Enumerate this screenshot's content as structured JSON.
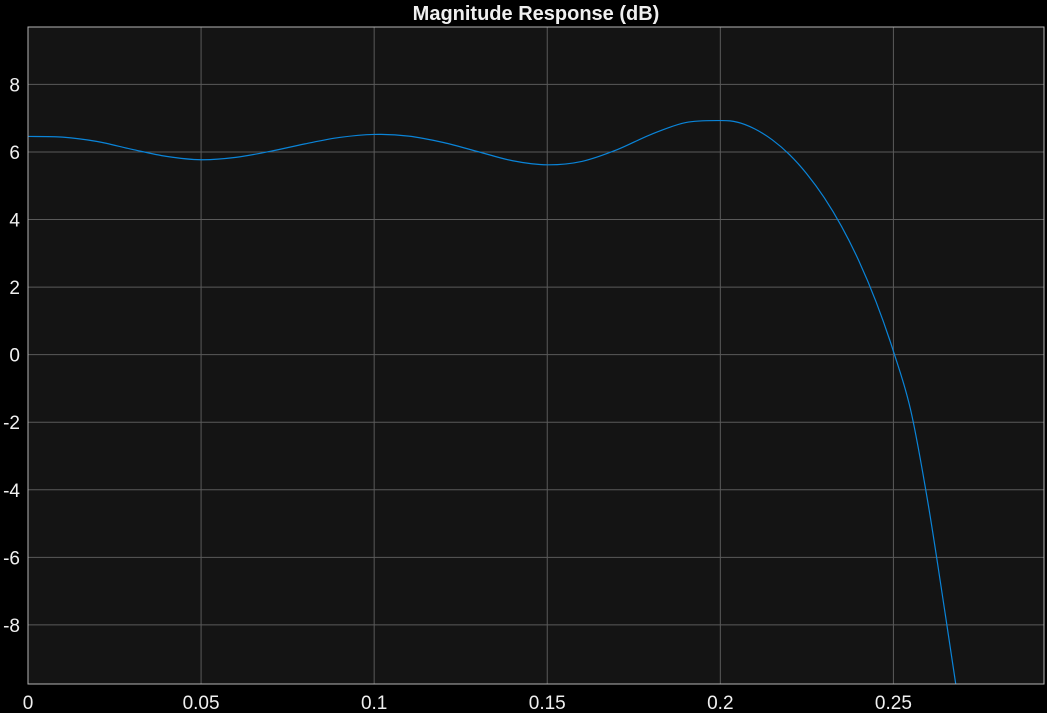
{
  "chart_data": {
    "type": "line",
    "title": "Magnitude Response (dB)",
    "xlabel": "",
    "ylabel": "",
    "xlim": [
      0,
      0.2935
    ],
    "ylim": [
      -9.75,
      9.7
    ],
    "x_ticks": [
      0,
      0.05,
      0.1,
      0.15,
      0.2,
      0.25
    ],
    "x_tick_labels": [
      "0",
      "0.05",
      "0.1",
      "0.15",
      "0.2",
      "0.25"
    ],
    "y_ticks": [
      8,
      6,
      4,
      2,
      0,
      -2,
      -4,
      -6,
      -8
    ],
    "y_tick_labels": [
      "8",
      "6",
      "4",
      "2",
      "0",
      "-2",
      "-4",
      "-6",
      "-8"
    ],
    "grid": true,
    "colors": {
      "figure_background": "#000000",
      "axes_background": "#141414",
      "grid": "#5a5a5a",
      "axes_border": "#b4b4b4",
      "line": "#0a84d8",
      "text": "#f0f0f0"
    },
    "series": [
      {
        "points": [
          [
            0.0,
            6.46
          ],
          [
            0.01,
            6.44
          ],
          [
            0.02,
            6.31
          ],
          [
            0.03,
            6.08
          ],
          [
            0.04,
            5.87
          ],
          [
            0.05,
            5.77
          ],
          [
            0.06,
            5.84
          ],
          [
            0.07,
            6.02
          ],
          [
            0.08,
            6.24
          ],
          [
            0.09,
            6.43
          ],
          [
            0.1,
            6.52
          ],
          [
            0.11,
            6.47
          ],
          [
            0.12,
            6.28
          ],
          [
            0.13,
            6.01
          ],
          [
            0.14,
            5.74
          ],
          [
            0.15,
            5.62
          ],
          [
            0.16,
            5.72
          ],
          [
            0.17,
            6.06
          ],
          [
            0.18,
            6.52
          ],
          [
            0.19,
            6.87
          ],
          [
            0.2,
            6.93
          ],
          [
            0.205,
            6.88
          ],
          [
            0.21,
            6.68
          ],
          [
            0.215,
            6.36
          ],
          [
            0.22,
            5.92
          ],
          [
            0.225,
            5.35
          ],
          [
            0.23,
            4.65
          ],
          [
            0.235,
            3.8
          ],
          [
            0.24,
            2.78
          ],
          [
            0.245,
            1.56
          ],
          [
            0.25,
            0.1
          ],
          [
            0.255,
            -1.65
          ],
          [
            0.26,
            -4.4
          ],
          [
            0.265,
            -7.7
          ],
          [
            0.268,
            -9.75
          ]
        ]
      }
    ]
  }
}
